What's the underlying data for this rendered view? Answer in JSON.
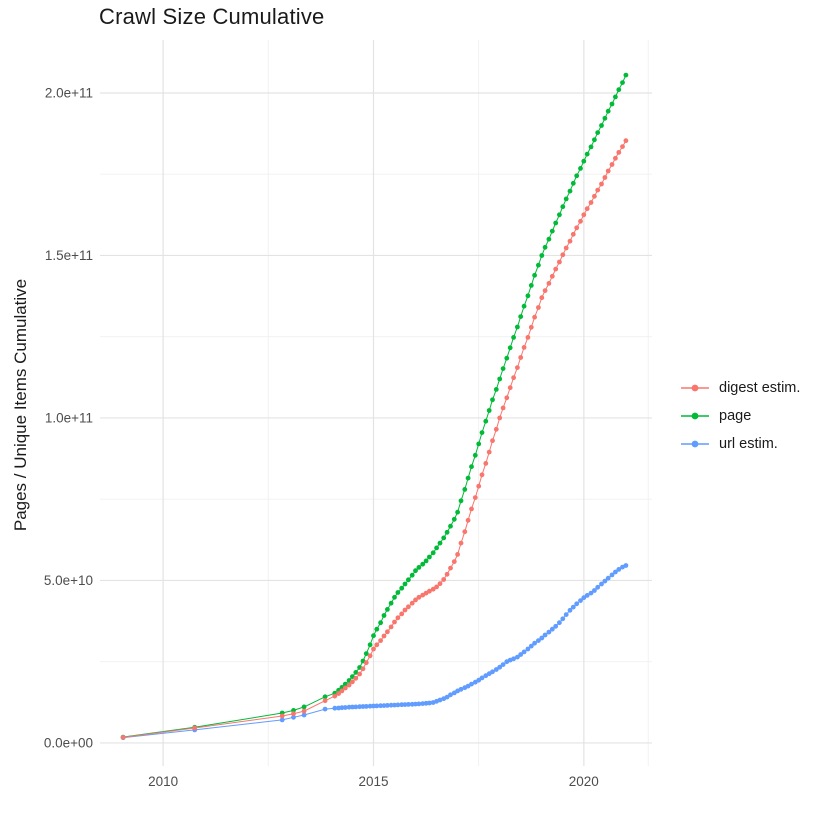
{
  "chart_data": {
    "type": "line",
    "title": "Crawl Size Cumulative",
    "ylabel": "Pages / Unique Items Cumulative",
    "xlabel": "",
    "y_unit": "billions (1e9) of pages / unique items",
    "grid": true,
    "legend_position": "right",
    "x_axis": {
      "lim": [
        2008.5,
        2021.62
      ],
      "ticks": [
        {
          "label": "2010",
          "value": 2010
        },
        {
          "label": "2015",
          "value": 2015
        },
        {
          "label": "2020",
          "value": 2020
        }
      ],
      "minor": [
        2012.5,
        2017.5,
        2021.53
      ]
    },
    "y_axis": {
      "lim_e9": [
        -7.1,
        216.3
      ],
      "ticks": [
        {
          "label": "0.0e+00",
          "value": 0
        },
        {
          "label": "5.0e+10",
          "value": 50
        },
        {
          "label": "1.0e+11",
          "value": 100
        },
        {
          "label": "1.5e+11",
          "value": 150
        },
        {
          "label": "2.0e+11",
          "value": 200
        }
      ],
      "minor": [
        25,
        75,
        125,
        175
      ]
    },
    "draw_order": [
      1,
      2,
      0
    ],
    "series": [
      {
        "name": "digest estim.",
        "color": "#F8766D",
        "points": [
          [
            2009.05,
            1.7
          ],
          [
            2010.75,
            4.6
          ],
          [
            2012.83,
            8.3
          ],
          [
            2013.1,
            9.0
          ],
          [
            2013.35,
            9.8
          ],
          [
            2013.85,
            13.0
          ],
          [
            2014.08,
            14.4
          ],
          [
            2014.17,
            15.2
          ],
          [
            2014.25,
            16.0
          ],
          [
            2014.33,
            16.9
          ],
          [
            2014.42,
            17.8
          ],
          [
            2014.5,
            18.8
          ],
          [
            2014.58,
            19.9
          ],
          [
            2014.67,
            21.2
          ],
          [
            2014.75,
            22.8
          ],
          [
            2014.83,
            24.7
          ],
          [
            2014.92,
            26.8
          ],
          [
            2015.0,
            28.9
          ],
          [
            2015.08,
            30.2
          ],
          [
            2015.17,
            31.5
          ],
          [
            2015.25,
            32.9
          ],
          [
            2015.33,
            34.2
          ],
          [
            2015.42,
            35.7
          ],
          [
            2015.5,
            37.2
          ],
          [
            2015.58,
            38.5
          ],
          [
            2015.67,
            39.7
          ],
          [
            2015.75,
            40.9
          ],
          [
            2015.83,
            41.9
          ],
          [
            2015.92,
            43.0
          ],
          [
            2016.0,
            44.0
          ],
          [
            2016.08,
            44.8
          ],
          [
            2016.17,
            45.5
          ],
          [
            2016.25,
            46.1
          ],
          [
            2016.33,
            46.7
          ],
          [
            2016.42,
            47.3
          ],
          [
            2016.5,
            48.0
          ],
          [
            2016.58,
            49.0
          ],
          [
            2016.67,
            50.3
          ],
          [
            2016.75,
            51.9
          ],
          [
            2016.83,
            53.8
          ],
          [
            2016.92,
            55.8
          ],
          [
            2017.0,
            58.0
          ],
          [
            2017.08,
            61.5
          ],
          [
            2017.17,
            65.0
          ],
          [
            2017.25,
            68.5
          ],
          [
            2017.33,
            72.0
          ],
          [
            2017.42,
            75.5
          ],
          [
            2017.5,
            79.0
          ],
          [
            2017.58,
            82.5
          ],
          [
            2017.67,
            86.0
          ],
          [
            2017.75,
            89.5
          ],
          [
            2017.83,
            93.0
          ],
          [
            2017.92,
            96.5
          ],
          [
            2018.0,
            100.0
          ],
          [
            2018.08,
            103.1
          ],
          [
            2018.17,
            106.2
          ],
          [
            2018.25,
            109.3
          ],
          [
            2018.33,
            112.4
          ],
          [
            2018.42,
            115.5
          ],
          [
            2018.5,
            118.6
          ],
          [
            2018.58,
            121.7
          ],
          [
            2018.67,
            124.8
          ],
          [
            2018.75,
            127.9
          ],
          [
            2018.83,
            131.0
          ],
          [
            2018.92,
            134.0
          ],
          [
            2019.0,
            137.0
          ],
          [
            2019.08,
            139.2
          ],
          [
            2019.17,
            141.4
          ],
          [
            2019.25,
            143.6
          ],
          [
            2019.33,
            145.8
          ],
          [
            2019.42,
            148.0
          ],
          [
            2019.5,
            150.2
          ],
          [
            2019.58,
            152.3
          ],
          [
            2019.67,
            154.4
          ],
          [
            2019.75,
            156.5
          ],
          [
            2019.83,
            158.5
          ],
          [
            2019.92,
            160.5
          ],
          [
            2020.0,
            162.5
          ],
          [
            2020.08,
            164.4
          ],
          [
            2020.17,
            166.3
          ],
          [
            2020.25,
            168.2
          ],
          [
            2020.33,
            170.1
          ],
          [
            2020.42,
            172.0
          ],
          [
            2020.5,
            174.0
          ],
          [
            2020.58,
            176.0
          ],
          [
            2020.67,
            178.0
          ],
          [
            2020.75,
            179.9
          ],
          [
            2020.83,
            181.7
          ],
          [
            2020.92,
            183.5
          ],
          [
            2021.0,
            185.3
          ]
        ]
      },
      {
        "name": "page",
        "color": "#00BA38",
        "points": [
          [
            2009.05,
            1.8
          ],
          [
            2010.75,
            4.8
          ],
          [
            2012.83,
            9.2
          ],
          [
            2013.1,
            10.0
          ],
          [
            2013.35,
            11.1
          ],
          [
            2013.85,
            14.2
          ],
          [
            2014.08,
            15.3
          ],
          [
            2014.17,
            16.2
          ],
          [
            2014.25,
            17.1
          ],
          [
            2014.33,
            18.1
          ],
          [
            2014.42,
            19.2
          ],
          [
            2014.5,
            20.4
          ],
          [
            2014.58,
            21.7
          ],
          [
            2014.67,
            23.2
          ],
          [
            2014.75,
            25.2
          ],
          [
            2014.83,
            27.5
          ],
          [
            2014.92,
            30.2
          ],
          [
            2015.0,
            33.0
          ],
          [
            2015.08,
            35.0
          ],
          [
            2015.17,
            37.0
          ],
          [
            2015.25,
            39.2
          ],
          [
            2015.33,
            41.1
          ],
          [
            2015.42,
            43.0
          ],
          [
            2015.5,
            44.8
          ],
          [
            2015.58,
            46.3
          ],
          [
            2015.67,
            47.6
          ],
          [
            2015.75,
            48.9
          ],
          [
            2015.83,
            50.2
          ],
          [
            2015.92,
            51.6
          ],
          [
            2016.0,
            53.0
          ],
          [
            2016.08,
            54.0
          ],
          [
            2016.17,
            55.0
          ],
          [
            2016.25,
            56.0
          ],
          [
            2016.33,
            57.2
          ],
          [
            2016.42,
            58.5
          ],
          [
            2016.5,
            60.0
          ],
          [
            2016.58,
            61.5
          ],
          [
            2016.67,
            63.1
          ],
          [
            2016.75,
            64.8
          ],
          [
            2016.83,
            66.7
          ],
          [
            2016.92,
            68.8
          ],
          [
            2017.0,
            71.0
          ],
          [
            2017.08,
            74.5
          ],
          [
            2017.17,
            78.0
          ],
          [
            2017.25,
            81.5
          ],
          [
            2017.33,
            85.0
          ],
          [
            2017.42,
            88.5
          ],
          [
            2017.5,
            92.0
          ],
          [
            2017.58,
            95.5
          ],
          [
            2017.67,
            99.0
          ],
          [
            2017.75,
            102.3
          ],
          [
            2017.83,
            105.6
          ],
          [
            2017.92,
            108.8
          ],
          [
            2018.0,
            112.0
          ],
          [
            2018.08,
            115.2
          ],
          [
            2018.17,
            118.4
          ],
          [
            2018.25,
            121.6
          ],
          [
            2018.33,
            124.8
          ],
          [
            2018.42,
            128.0
          ],
          [
            2018.5,
            131.2
          ],
          [
            2018.58,
            134.4
          ],
          [
            2018.67,
            137.6
          ],
          [
            2018.75,
            140.8
          ],
          [
            2018.83,
            143.9
          ],
          [
            2018.92,
            147.0
          ],
          [
            2019.0,
            150.0
          ],
          [
            2019.08,
            152.5
          ],
          [
            2019.17,
            155.0
          ],
          [
            2019.25,
            157.5
          ],
          [
            2019.33,
            160.0
          ],
          [
            2019.42,
            162.5
          ],
          [
            2019.5,
            165.0
          ],
          [
            2019.58,
            167.4
          ],
          [
            2019.67,
            169.8
          ],
          [
            2019.75,
            172.2
          ],
          [
            2019.83,
            174.5
          ],
          [
            2019.92,
            176.8
          ],
          [
            2020.0,
            179.0
          ],
          [
            2020.08,
            181.2
          ],
          [
            2020.17,
            183.4
          ],
          [
            2020.25,
            185.6
          ],
          [
            2020.33,
            187.8
          ],
          [
            2020.42,
            190.0
          ],
          [
            2020.5,
            192.2
          ],
          [
            2020.58,
            194.4
          ],
          [
            2020.67,
            196.6
          ],
          [
            2020.75,
            198.8
          ],
          [
            2020.83,
            201.0
          ],
          [
            2020.92,
            203.2
          ],
          [
            2021.0,
            205.5
          ]
        ]
      },
      {
        "name": "url estim.",
        "color": "#619CFF",
        "points": [
          [
            2009.05,
            1.6
          ],
          [
            2010.75,
            4.0
          ],
          [
            2012.83,
            7.1
          ],
          [
            2013.1,
            7.9
          ],
          [
            2013.35,
            8.6
          ],
          [
            2013.85,
            10.4
          ],
          [
            2014.08,
            10.7
          ],
          [
            2014.17,
            10.75
          ],
          [
            2014.25,
            10.85
          ],
          [
            2014.33,
            10.9
          ],
          [
            2014.42,
            11.0
          ],
          [
            2014.5,
            11.05
          ],
          [
            2014.58,
            11.1
          ],
          [
            2014.67,
            11.15
          ],
          [
            2014.75,
            11.2
          ],
          [
            2014.83,
            11.25
          ],
          [
            2014.92,
            11.3
          ],
          [
            2015.0,
            11.35
          ],
          [
            2015.08,
            11.4
          ],
          [
            2015.17,
            11.45
          ],
          [
            2015.25,
            11.5
          ],
          [
            2015.33,
            11.55
          ],
          [
            2015.42,
            11.6
          ],
          [
            2015.5,
            11.65
          ],
          [
            2015.58,
            11.7
          ],
          [
            2015.67,
            11.75
          ],
          [
            2015.75,
            11.8
          ],
          [
            2015.83,
            11.85
          ],
          [
            2015.92,
            11.9
          ],
          [
            2016.0,
            11.95
          ],
          [
            2016.08,
            12.0
          ],
          [
            2016.17,
            12.1
          ],
          [
            2016.25,
            12.2
          ],
          [
            2016.33,
            12.3
          ],
          [
            2016.42,
            12.45
          ],
          [
            2016.5,
            12.8
          ],
          [
            2016.58,
            13.2
          ],
          [
            2016.67,
            13.6
          ],
          [
            2016.75,
            14.1
          ],
          [
            2016.83,
            14.8
          ],
          [
            2016.92,
            15.4
          ],
          [
            2017.0,
            16.0
          ],
          [
            2017.08,
            16.5
          ],
          [
            2017.17,
            17.0
          ],
          [
            2017.25,
            17.5
          ],
          [
            2017.33,
            18.1
          ],
          [
            2017.42,
            18.7
          ],
          [
            2017.5,
            19.3
          ],
          [
            2017.58,
            20.0
          ],
          [
            2017.67,
            20.7
          ],
          [
            2017.75,
            21.3
          ],
          [
            2017.83,
            21.9
          ],
          [
            2017.92,
            22.6
          ],
          [
            2018.0,
            23.3
          ],
          [
            2018.08,
            24.1
          ],
          [
            2018.17,
            25.0
          ],
          [
            2018.25,
            25.5
          ],
          [
            2018.33,
            25.9
          ],
          [
            2018.42,
            26.4
          ],
          [
            2018.5,
            27.2
          ],
          [
            2018.58,
            28.0
          ],
          [
            2018.67,
            28.9
          ],
          [
            2018.75,
            29.8
          ],
          [
            2018.83,
            30.7
          ],
          [
            2018.92,
            31.5
          ],
          [
            2019.0,
            32.3
          ],
          [
            2019.08,
            33.2
          ],
          [
            2019.17,
            34.1
          ],
          [
            2019.25,
            35.0
          ],
          [
            2019.33,
            35.9
          ],
          [
            2019.42,
            37.0
          ],
          [
            2019.5,
            38.2
          ],
          [
            2019.58,
            39.5
          ],
          [
            2019.67,
            40.8
          ],
          [
            2019.75,
            41.8
          ],
          [
            2019.83,
            42.8
          ],
          [
            2019.92,
            43.8
          ],
          [
            2020.0,
            44.7
          ],
          [
            2020.08,
            45.4
          ],
          [
            2020.17,
            46.1
          ],
          [
            2020.25,
            46.9
          ],
          [
            2020.33,
            47.9
          ],
          [
            2020.42,
            48.9
          ],
          [
            2020.5,
            49.8
          ],
          [
            2020.58,
            50.7
          ],
          [
            2020.67,
            51.7
          ],
          [
            2020.75,
            52.6
          ],
          [
            2020.83,
            53.4
          ],
          [
            2020.92,
            54.1
          ],
          [
            2021.0,
            54.6
          ]
        ]
      }
    ]
  }
}
